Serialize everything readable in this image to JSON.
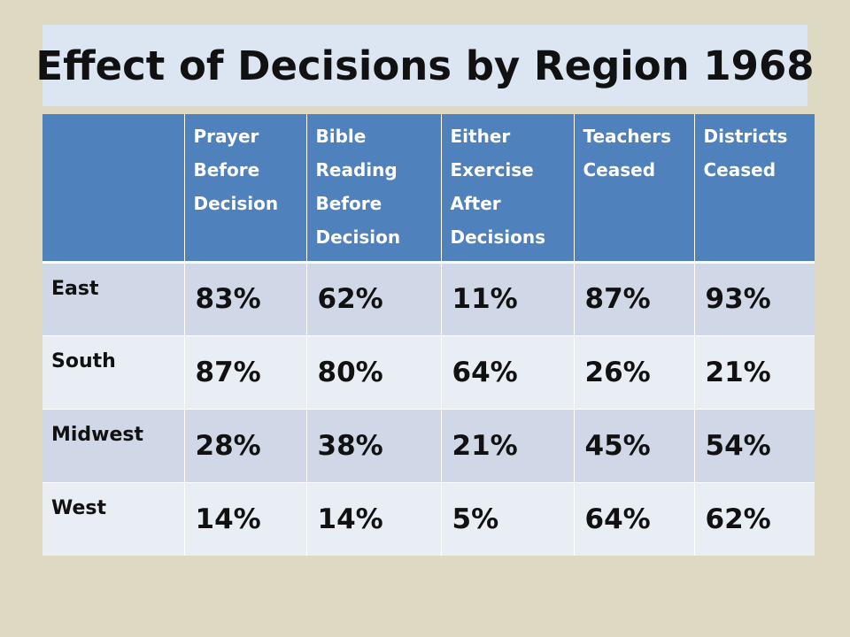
{
  "title": "Effect of Decisions by Region 1968",
  "table": {
    "headers": [
      "",
      "Prayer Before Decision",
      "Bible Reading Before Decision",
      "Either Exercise After Decisions",
      "Teachers Ceased",
      "Districts Ceased"
    ],
    "rows": [
      {
        "region": "East",
        "values": [
          "83%",
          "62%",
          "11%",
          "87%",
          "93%"
        ]
      },
      {
        "region": "South",
        "values": [
          "87%",
          "80%",
          "64%",
          "26%",
          "21%"
        ]
      },
      {
        "region": "Midwest",
        "values": [
          "28%",
          "38%",
          "21%",
          "45%",
          "54%"
        ]
      },
      {
        "region": "West",
        "values": [
          "14%",
          "14%",
          "5%",
          "64%",
          "62%"
        ]
      }
    ]
  },
  "colors": {
    "background": "#ded9c3",
    "title_box": "#dce6f2",
    "header_fill": "#4f81bd",
    "row_band_dark": "#d0d8e8",
    "row_band_light": "#e9edf4"
  }
}
